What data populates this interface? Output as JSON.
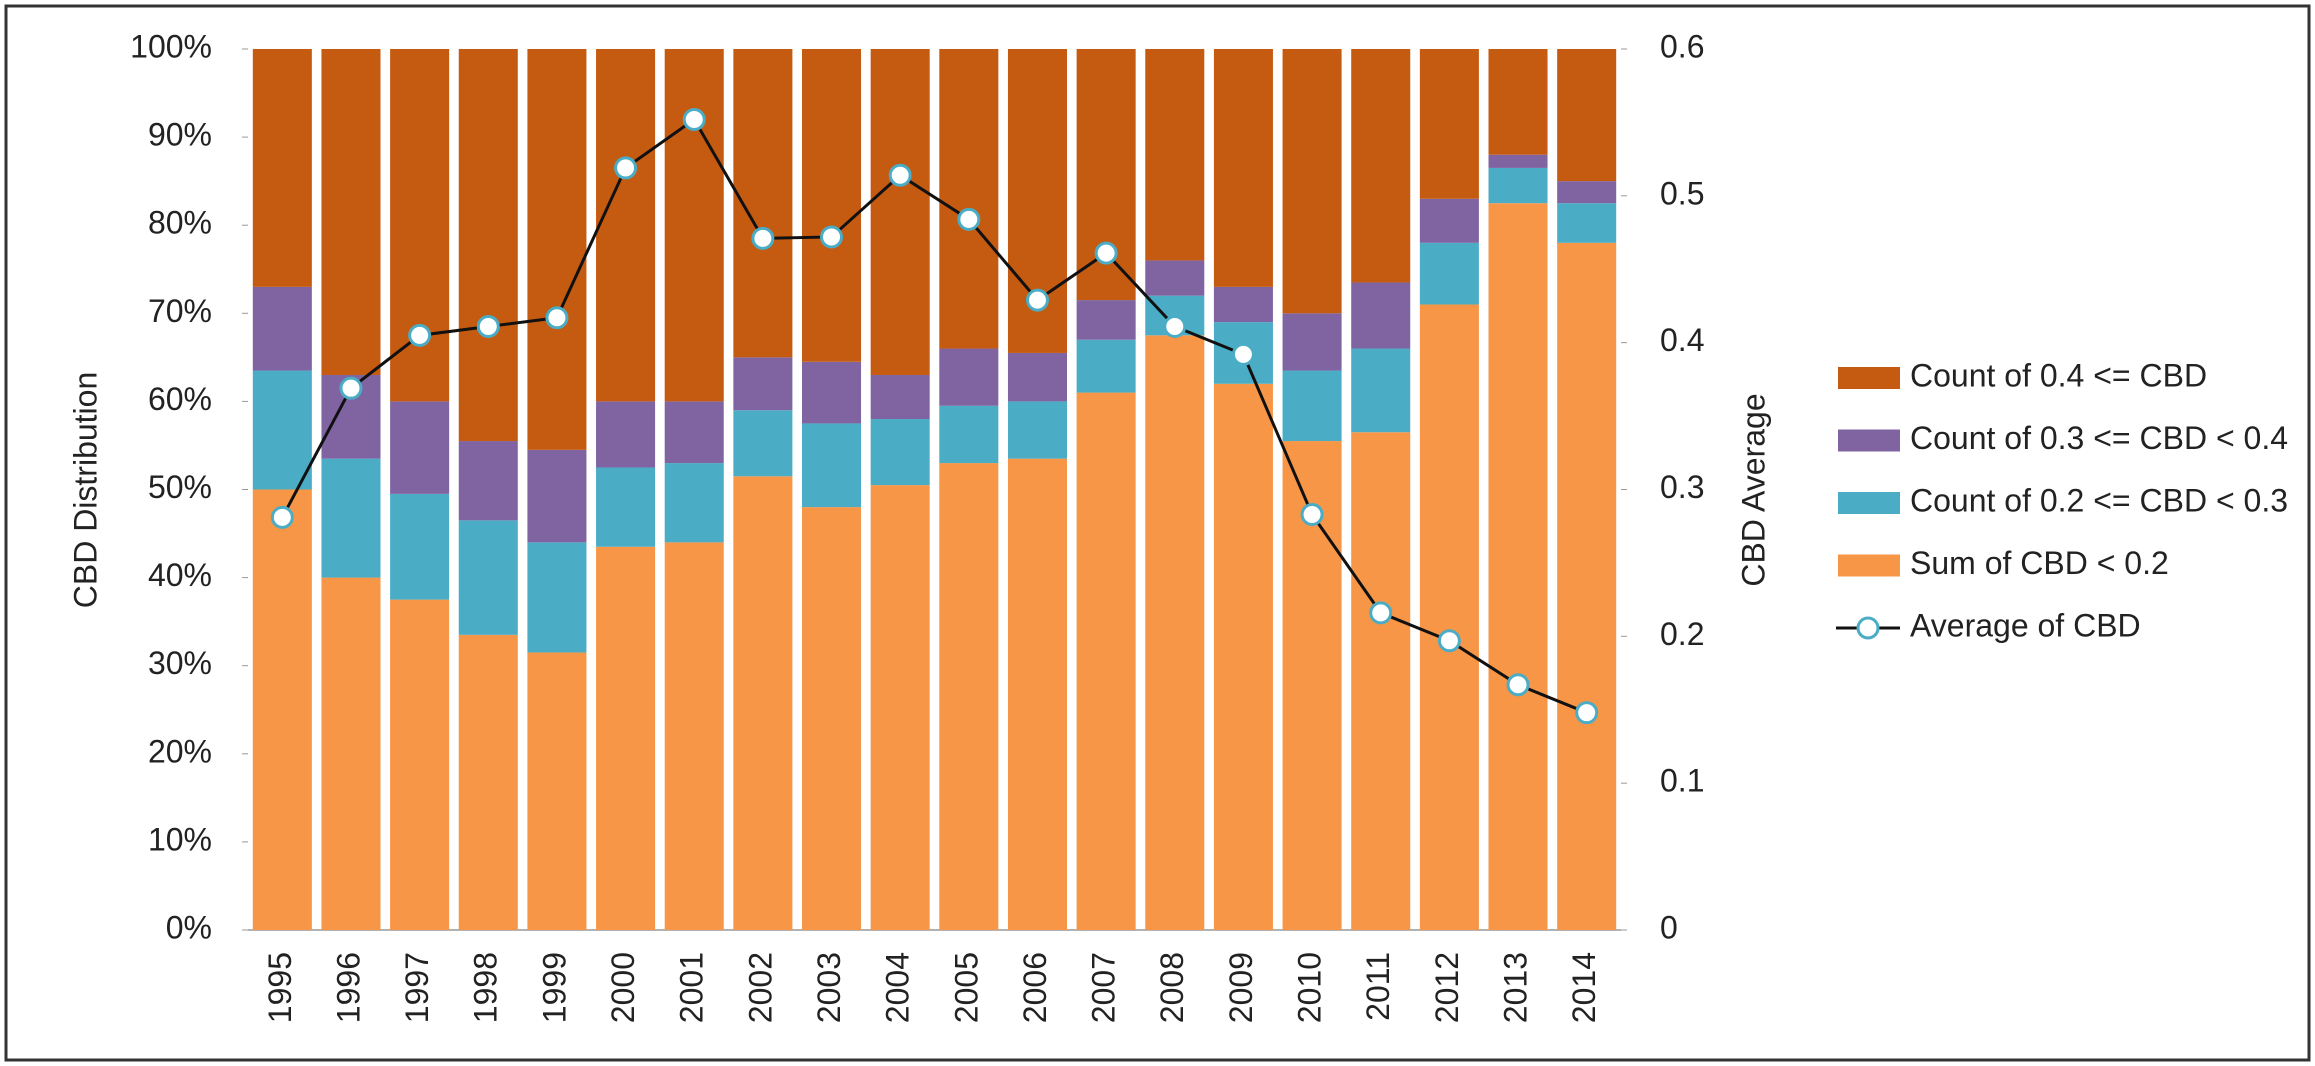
{
  "chart_data": {
    "type": "bar",
    "stacked": true,
    "y_label": "CBD Distribution",
    "y2_label": "CBD Average",
    "categories": [
      "1995",
      "1996",
      "1997",
      "1998",
      "1999",
      "2000",
      "2001",
      "2002",
      "2003",
      "2004",
      "2005",
      "2006",
      "2007",
      "2008",
      "2009",
      "2010",
      "2011",
      "2012",
      "2013",
      "2014"
    ],
    "ylim": [
      0,
      100
    ],
    "yticks": [
      {
        "value": 0,
        "label": "0%"
      },
      {
        "value": 10,
        "label": "10%"
      },
      {
        "value": 20,
        "label": "20%"
      },
      {
        "value": 30,
        "label": "30%"
      },
      {
        "value": 40,
        "label": "40%"
      },
      {
        "value": 50,
        "label": "50%"
      },
      {
        "value": 60,
        "label": "60%"
      },
      {
        "value": 70,
        "label": "70%"
      },
      {
        "value": 80,
        "label": "80%"
      },
      {
        "value": 90,
        "label": "90%"
      },
      {
        "value": 100,
        "label": "100%"
      }
    ],
    "y2lim": [
      0,
      0.6
    ],
    "y2ticks": [
      0,
      0.1,
      0.2,
      0.3,
      0.4,
      0.5,
      0.6
    ],
    "series": [
      {
        "name": "Sum of CBD < 0.2",
        "type": "bar",
        "color": "#f79646",
        "values": [
          50,
          40,
          37.5,
          33.5,
          31.5,
          43.5,
          44,
          51.5,
          48,
          50.5,
          53,
          53.5,
          61,
          67.5,
          62,
          55.5,
          56.5,
          71,
          82.5,
          78
        ]
      },
      {
        "name": "Count of 0.2 <= CBD < 0.3",
        "type": "bar",
        "color": "#4bacc6",
        "values": [
          13.5,
          13.5,
          12,
          13,
          12.5,
          9,
          9,
          7.5,
          9.5,
          7.5,
          6.5,
          6.5,
          6,
          4.5,
          7,
          8,
          9.5,
          7,
          4,
          4.5
        ]
      },
      {
        "name": "Count of 0.3 <= CBD < 0.4",
        "type": "bar",
        "color": "#8064a2",
        "values": [
          9.5,
          9.5,
          10.5,
          9,
          10.5,
          7.5,
          7,
          6,
          7,
          5,
          6.5,
          5.5,
          4.5,
          4,
          4,
          6.5,
          7.5,
          5,
          1.5,
          2.5
        ]
      },
      {
        "name": "Count of 0.4 <= CBD",
        "type": "bar",
        "color": "#c55a11",
        "values": [
          27,
          37,
          40,
          44.5,
          45.5,
          40,
          40,
          35,
          35.5,
          37,
          34,
          34.5,
          28.5,
          24,
          27,
          30,
          26.5,
          17,
          12,
          15
        ]
      },
      {
        "name": "Average of CBD",
        "type": "line",
        "axis": "y2",
        "color": "#111111",
        "marker_color": "#4bacc6",
        "values": [
          0.281,
          0.369,
          0.405,
          0.411,
          0.417,
          0.519,
          0.552,
          0.471,
          0.472,
          0.514,
          0.484,
          0.429,
          0.461,
          0.411,
          0.392,
          0.283,
          0.216,
          0.197,
          0.167,
          0.148
        ]
      }
    ]
  }
}
